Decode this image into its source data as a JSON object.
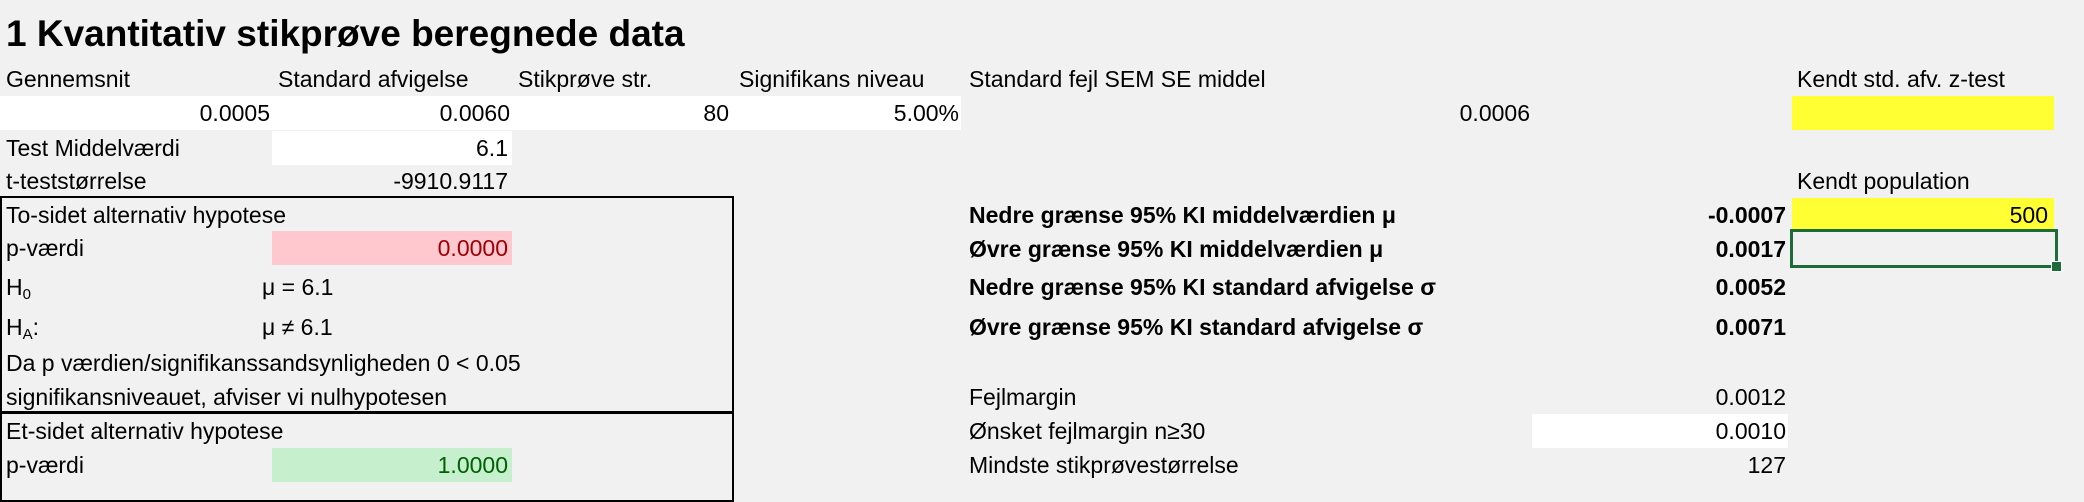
{
  "title": "1 Kvantitativ stikprøve beregnede data",
  "headers": {
    "mean": "Gennemsnit",
    "std_dev": "Standard afvigelse",
    "sample_size": "Stikprøve str.",
    "significance": "Signifikans niveau",
    "sem": "Standard fejl SEM SE middel",
    "known_std": "Kendt std. afv. z-test"
  },
  "values": {
    "mean": "0.0005",
    "std_dev": "0.0060",
    "sample_size": "80",
    "significance": "5.00%",
    "sem": "0.0006"
  },
  "test": {
    "mean_label": "Test Middelværdi",
    "mean_value": "6.1",
    "t_label": "t-teststørrelse",
    "t_value": "-9910.9117"
  },
  "two_sided": {
    "heading": "To-sidet alternativ hypotese",
    "p_label": "p-værdi",
    "p_value": "0.0000",
    "h0_label": "H",
    "h0_sub": "0",
    "h0_value": "μ = 6.1",
    "ha_label": "H",
    "ha_sub": "A",
    "ha_suffix": ":",
    "ha_value": "μ ≠ 6.1",
    "conclusion_line1": "Da p værdien/signifikanssandsynligheden 0 < 0.05",
    "conclusion_line2": "signifikansniveauet, afviser vi nulhypotesen"
  },
  "one_sided": {
    "heading": "Et-sidet alternativ hypotese",
    "p_label": "p-værdi",
    "p_value": "1.0000"
  },
  "confidence": {
    "lower_mean_label": "Nedre grænse 95% KI middelværdien μ",
    "lower_mean_value": "-0.0007",
    "upper_mean_label": "Øvre grænse 95% KI middelværdien μ",
    "upper_mean_value": "0.0017",
    "lower_sd_label": "Nedre grænse 95% KI standard afvigelse σ",
    "lower_sd_value": "0.0052",
    "upper_sd_label": "Øvre grænse 95% KI standard afvigelse σ",
    "upper_sd_value": "0.0071"
  },
  "margin": {
    "error_label": "Fejlmargin",
    "error_value": "0.0012",
    "desired_label": "Ønsket fejlmargin n≥30",
    "desired_value": "0.0010",
    "min_size_label": "Mindste stikprøvestørrelse",
    "min_size_value": "127"
  },
  "population": {
    "label": "Kendt population",
    "value": "500"
  },
  "colors": {
    "input_yellow": "#ffff33",
    "pink_fill": "#ffc7ce",
    "pink_text": "#9c0006",
    "green_fill": "#c6efce",
    "green_text": "#006100",
    "selection": "#1e6b3a"
  }
}
